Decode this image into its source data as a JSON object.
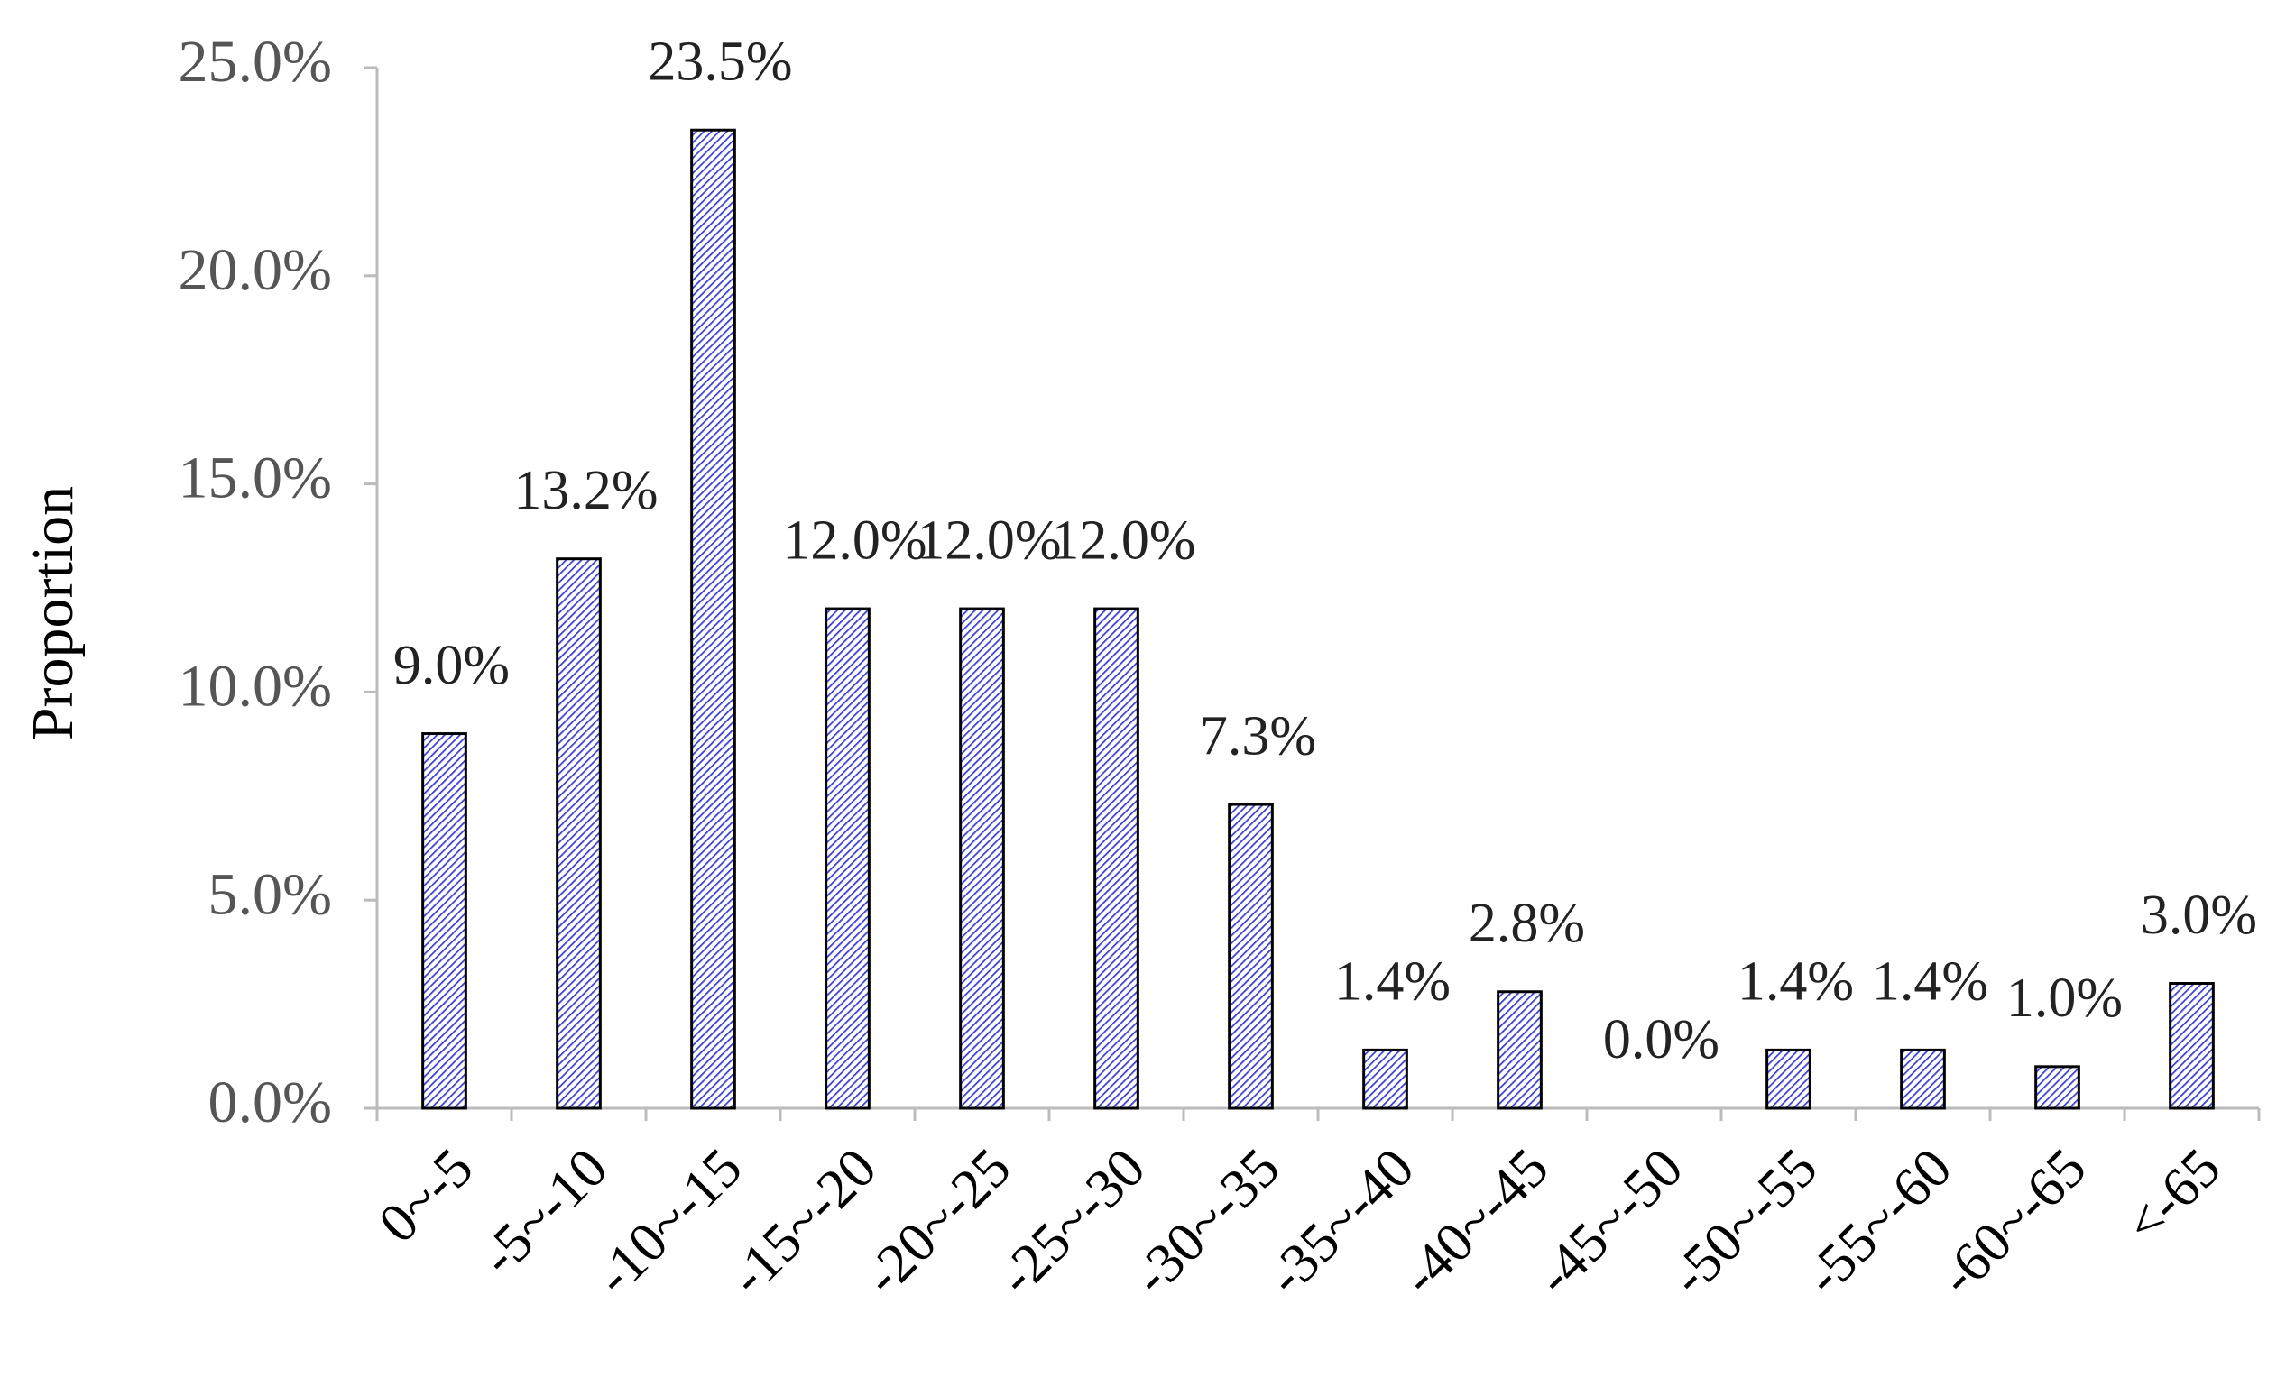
{
  "chart_data": {
    "type": "bar",
    "y_label": "Proportion",
    "categories": [
      "0~-5",
      "-5~-10",
      "-10~-15",
      "-15~-20",
      "-20~-25",
      "-25~-30",
      "-30~-35",
      "-35~-40",
      "-40~-45",
      "-45~-50",
      "-50~-55",
      "-55~-60",
      "-60~-65",
      "<-65"
    ],
    "values": [
      9.0,
      13.2,
      23.5,
      12.0,
      12.0,
      12.0,
      7.3,
      1.4,
      2.8,
      0.0,
      1.4,
      1.4,
      1.0,
      3.0
    ],
    "value_labels": [
      "9.0%",
      "13.2%",
      "23.5%",
      "12.0%",
      "12.0%",
      "12.0%",
      "7.3%",
      "1.4%",
      "2.8%",
      "0.0%",
      "1.4%",
      "1.4%",
      "1.0%",
      "3.0%"
    ],
    "color": "#3a3fd0",
    "ylim": [
      0,
      25
    ],
    "yticks": [
      {
        "value": 0,
        "label": "0.0%"
      },
      {
        "value": 5,
        "label": "5.0%"
      },
      {
        "value": 10,
        "label": "10.0%"
      },
      {
        "value": 15,
        "label": "15.0%"
      },
      {
        "value": 20,
        "label": "20.0%"
      },
      {
        "value": 25,
        "label": "25.0%"
      }
    ]
  }
}
